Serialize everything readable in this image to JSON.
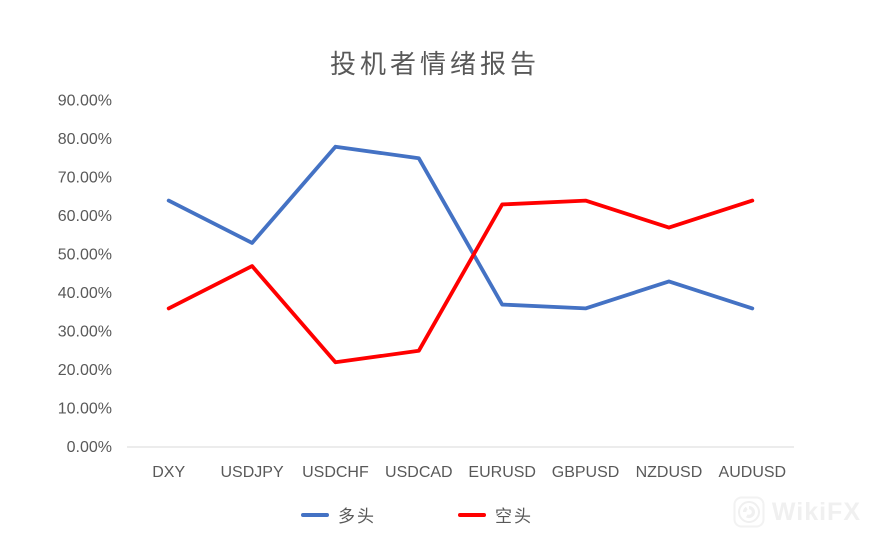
{
  "watermark": {
    "text": "WikiFX",
    "color": "#f0f0f0"
  },
  "chart_data": {
    "type": "line",
    "title": "投机者情绪报告",
    "categories": [
      "DXY",
      "USDJPY",
      "USDCHF",
      "USDCAD",
      "EURUSD",
      "GBPUSD",
      "NZDUSD",
      "AUDUSD"
    ],
    "series": [
      {
        "name": "多头",
        "color": "#4472C4",
        "values": [
          64,
          53,
          78,
          75,
          37,
          36,
          43,
          36
        ]
      },
      {
        "name": "空头",
        "color": "#FF0000",
        "values": [
          36,
          47,
          22,
          25,
          63,
          64,
          57,
          64
        ]
      }
    ],
    "unit": "%",
    "value_format": "0.00%",
    "ylim": [
      0,
      90
    ],
    "y_ticks": [
      {
        "value": 0,
        "label": "0.00%"
      },
      {
        "value": 10,
        "label": "10.00%"
      },
      {
        "value": 20,
        "label": "20.00%"
      },
      {
        "value": 30,
        "label": "30.00%"
      },
      {
        "value": 40,
        "label": "40.00%"
      },
      {
        "value": 50,
        "label": "50.00%"
      },
      {
        "value": 60,
        "label": "60.00%"
      },
      {
        "value": 70,
        "label": "70.00%"
      },
      {
        "value": 80,
        "label": "80.00%"
      },
      {
        "value": 90,
        "label": "90.00%"
      }
    ],
    "grid": false,
    "legend_position": "bottom",
    "axis_color": "#D9D9D9",
    "label_color": "#595959"
  }
}
